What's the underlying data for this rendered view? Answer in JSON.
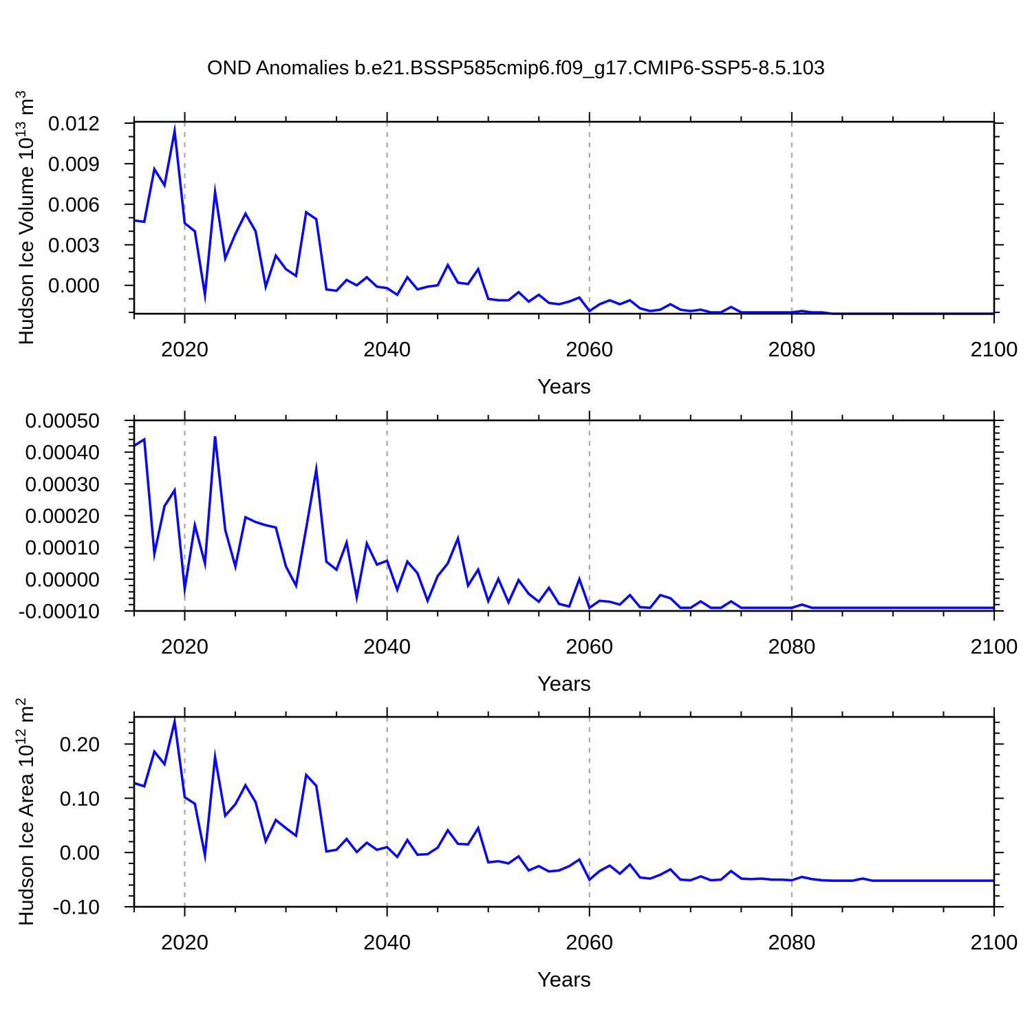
{
  "title": "OND Anomalies b.e21.BSSP585cmip6.f09_g17.CMIP6-SSP5-8.5.103",
  "figure": {
    "bg": "#ffffff",
    "line_color": "#0b0be6",
    "grid_color": "#a8a8a8",
    "axis_color": "#000000",
    "xlabel": "Years",
    "xlim": [
      2015,
      2100
    ],
    "x_major_ticks": [
      2020,
      2040,
      2060,
      2080,
      2100
    ],
    "x_grid": [
      2020,
      2040,
      2060,
      2080
    ],
    "x_minor_step": 5
  },
  "years": [
    2015,
    2016,
    2017,
    2018,
    2019,
    2020,
    2021,
    2022,
    2023,
    2024,
    2025,
    2026,
    2027,
    2028,
    2029,
    2030,
    2031,
    2032,
    2033,
    2034,
    2035,
    2036,
    2037,
    2038,
    2039,
    2040,
    2041,
    2042,
    2043,
    2044,
    2045,
    2046,
    2047,
    2048,
    2049,
    2050,
    2051,
    2052,
    2053,
    2054,
    2055,
    2056,
    2057,
    2058,
    2059,
    2060,
    2061,
    2062,
    2063,
    2064,
    2065,
    2066,
    2067,
    2068,
    2069,
    2070,
    2071,
    2072,
    2073,
    2074,
    2075,
    2076,
    2077,
    2078,
    2079,
    2080,
    2081,
    2082,
    2083,
    2084,
    2085,
    2086,
    2087,
    2088,
    2089,
    2090,
    2091,
    2092,
    2093,
    2094,
    2095,
    2096,
    2097,
    2098,
    2099,
    2100
  ],
  "chart_data": [
    {
      "type": "line",
      "ylabel": "Hudson Ice Volume 10^13 m^3",
      "ylabel_parts": [
        {
          "t": "Hudson Ice Volume 10"
        },
        {
          "t": "13",
          "sup": true
        },
        {
          "t": " m"
        },
        {
          "t": "3",
          "sup": true
        }
      ],
      "ylim": [
        -0.0021,
        0.0121
      ],
      "y_minor_step": 0.001,
      "grid": true,
      "legend": "none",
      "yticks": [
        {
          "v": 0.0,
          "label": "0.000"
        },
        {
          "v": 0.003,
          "label": "0.003"
        },
        {
          "v": 0.006,
          "label": "0.006"
        },
        {
          "v": 0.009,
          "label": "0.009"
        },
        {
          "v": 0.012,
          "label": "0.012"
        }
      ],
      "values": [
        0.0048,
        0.0047,
        0.0086,
        0.0074,
        0.0114,
        0.0046,
        0.004,
        -0.0007,
        0.0069,
        0.002,
        0.0038,
        0.0053,
        0.004,
        -0.0001,
        0.0022,
        0.0012,
        0.0007,
        0.0054,
        0.0049,
        -0.0003,
        -0.0004,
        0.0004,
        0.0,
        0.0006,
        -0.0001,
        -0.0002,
        -0.0007,
        0.0006,
        -0.0003,
        -0.0001,
        0.0,
        0.0015,
        0.0002,
        0.0001,
        0.0012,
        -0.001,
        -0.0011,
        -0.0011,
        -0.0005,
        -0.0012,
        -0.0007,
        -0.0013,
        -0.0014,
        -0.0012,
        -0.0009,
        -0.0019,
        -0.0014,
        -0.0011,
        -0.0014,
        -0.0011,
        -0.0017,
        -0.0019,
        -0.0018,
        -0.0014,
        -0.0018,
        -0.0019,
        -0.0018,
        -0.002,
        -0.002,
        -0.0016,
        -0.002,
        -0.002,
        -0.002,
        -0.002,
        -0.002,
        -0.002,
        -0.0019,
        -0.002,
        -0.002,
        -0.0021,
        -0.0021,
        -0.0021,
        -0.0021,
        -0.0021,
        -0.0021,
        -0.0021,
        -0.0021,
        -0.0021,
        -0.0021,
        -0.0021,
        -0.0021,
        -0.0021,
        -0.0021,
        -0.0021,
        -0.0021,
        -0.0021
      ]
    },
    {
      "type": "line",
      "ylabel": "",
      "ylabel_parts": [],
      "ylim": [
        -0.0001,
        0.0005
      ],
      "y_minor_step": 2e-05,
      "grid": true,
      "legend": "none",
      "yticks": [
        {
          "v": -0.0001,
          "label": "-0.00010"
        },
        {
          "v": 0.0,
          "label": "0.00000"
        },
        {
          "v": 0.0001,
          "label": "0.00010"
        },
        {
          "v": 0.0002,
          "label": "0.00020"
        },
        {
          "v": 0.0003,
          "label": "0.00030"
        },
        {
          "v": 0.0004,
          "label": "0.00040"
        },
        {
          "v": 0.0005,
          "label": "0.00050"
        }
      ],
      "values": [
        0.00042,
        0.00044,
        8e-05,
        0.00023,
        0.00028,
        -3e-05,
        0.00017,
        5e-05,
        0.00045,
        0.000155,
        4e-05,
        0.000195,
        0.00018,
        0.00017,
        0.000163,
        4e-05,
        -2e-05,
        0.00016,
        0.000345,
        5.5e-05,
        3e-05,
        0.000115,
        -5.7e-05,
        0.000112,
        4.6e-05,
        5.8e-05,
        -3.3e-05,
        5.5e-05,
        1.9e-05,
        -6.8e-05,
        1e-05,
        5e-05,
        0.000128,
        -2e-05,
        3e-05,
        -6.9e-05,
        1e-06,
        -7.3e-05,
        -3e-06,
        -4.6e-05,
        -7.1e-05,
        -2.7e-05,
        -7.8e-05,
        -8.6e-05,
        0.0,
        -9e-05,
        -6.8e-05,
        -7.1e-05,
        -8e-05,
        -5e-05,
        -8.8e-05,
        -9e-05,
        -5e-05,
        -6e-05,
        -9e-05,
        -9e-05,
        -7e-05,
        -9e-05,
        -9e-05,
        -7e-05,
        -9e-05,
        -9e-05,
        -9e-05,
        -9e-05,
        -9e-05,
        -9e-05,
        -8e-05,
        -9e-05,
        -9e-05,
        -9e-05,
        -9e-05,
        -9e-05,
        -9e-05,
        -9e-05,
        -9e-05,
        -9e-05,
        -9e-05,
        -9e-05,
        -9e-05,
        -9e-05,
        -9e-05,
        -9e-05,
        -9e-05,
        -9e-05,
        -9e-05,
        -9e-05
      ]
    },
    {
      "type": "line",
      "ylabel": "Hudson Ice Area 10^12 m^2",
      "ylabel_parts": [
        {
          "t": "Hudson Ice Area 10"
        },
        {
          "t": "12",
          "sup": true
        },
        {
          "t": " m"
        },
        {
          "t": "2",
          "sup": true
        }
      ],
      "ylim": [
        -0.1,
        0.25
      ],
      "y_minor_step": 0.02,
      "grid": true,
      "legend": "none",
      "yticks": [
        {
          "v": -0.1,
          "label": "-0.10"
        },
        {
          "v": 0.0,
          "label": "0.00"
        },
        {
          "v": 0.1,
          "label": "0.10"
        },
        {
          "v": 0.2,
          "label": "0.20"
        }
      ],
      "values": [
        0.128,
        0.122,
        0.186,
        0.163,
        0.241,
        0.102,
        0.09,
        -0.005,
        0.176,
        0.068,
        0.089,
        0.124,
        0.093,
        0.021,
        0.06,
        0.045,
        0.031,
        0.143,
        0.123,
        0.002,
        0.005,
        0.025,
        0.001,
        0.018,
        0.005,
        0.01,
        -0.008,
        0.023,
        -0.004,
        -0.003,
        0.009,
        0.041,
        0.016,
        0.015,
        0.045,
        -0.018,
        -0.016,
        -0.02,
        -0.007,
        -0.033,
        -0.025,
        -0.035,
        -0.033,
        -0.025,
        -0.013,
        -0.05,
        -0.034,
        -0.024,
        -0.039,
        -0.022,
        -0.046,
        -0.048,
        -0.041,
        -0.031,
        -0.05,
        -0.051,
        -0.044,
        -0.051,
        -0.05,
        -0.034,
        -0.048,
        -0.049,
        -0.048,
        -0.05,
        -0.05,
        -0.051,
        -0.045,
        -0.049,
        -0.051,
        -0.052,
        -0.052,
        -0.052,
        -0.048,
        -0.052,
        -0.052,
        -0.052,
        -0.052,
        -0.052,
        -0.052,
        -0.052,
        -0.052,
        -0.052,
        -0.052,
        -0.052,
        -0.052,
        -0.052
      ]
    }
  ]
}
